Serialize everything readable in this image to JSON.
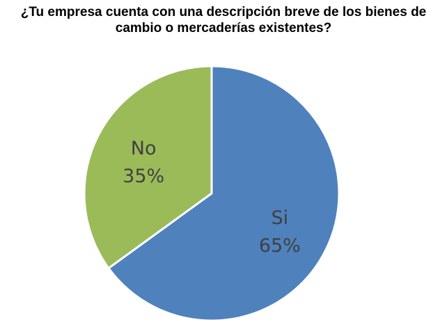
{
  "chart_data": {
    "type": "pie",
    "title_lines": [
      "¿Tu empresa cuenta con una descripción breve de los bienes de",
      "cambio o mercaderías existentes?"
    ],
    "slices": [
      {
        "label": "Si",
        "value": 65,
        "percent_label": "65%",
        "color": "#4f81bd"
      },
      {
        "label": "No",
        "value": 35,
        "percent_label": "35%",
        "color": "#9bbb59"
      }
    ],
    "start_angle_deg": 0,
    "direction": "clockwise",
    "legend": "none",
    "data_labels": "inside"
  }
}
